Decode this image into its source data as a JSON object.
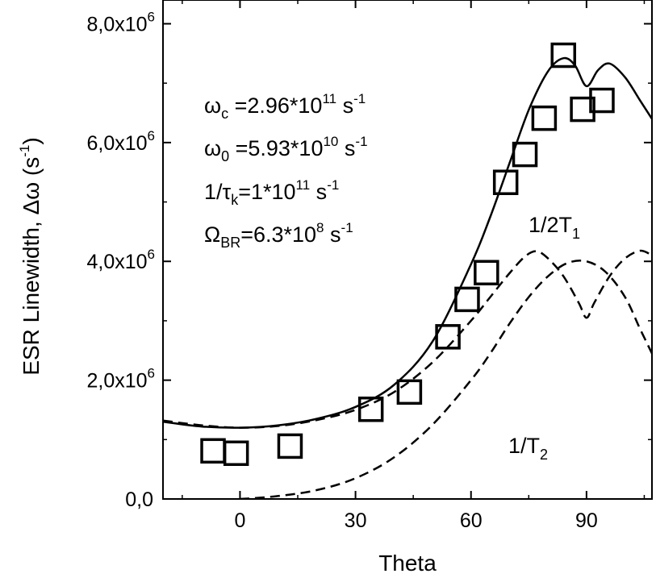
{
  "chart_data": {
    "type": "line",
    "xlabel": "Theta",
    "ylabel": {
      "prefix": "ESR Linewidth, Δω  (s",
      "sup": "-1",
      "suffix": ")"
    },
    "xlim": [
      -20,
      107
    ],
    "ylim": [
      -0.0,
      8.4
    ],
    "y_scale_note": "values in units of 10^6",
    "x_ticks": [
      {
        "value": 0,
        "label": "0"
      },
      {
        "value": 30,
        "label": "30"
      },
      {
        "value": 60,
        "label": "60"
      },
      {
        "value": 90,
        "label": "90"
      }
    ],
    "y_ticks": [
      {
        "value": 0,
        "label": "0,0",
        "exp": ""
      },
      {
        "value": 2,
        "label": "2,0x10",
        "exp": "6"
      },
      {
        "value": 4,
        "label": "4,0x10",
        "exp": "6"
      },
      {
        "value": 6,
        "label": "6,0x10",
        "exp": "6"
      },
      {
        "value": 8,
        "label": "8,0x10",
        "exp": "6"
      }
    ],
    "series": [
      {
        "style": "squares",
        "x": [
          -7,
          -1,
          13,
          34,
          44,
          54,
          59,
          64,
          69,
          74,
          79,
          84,
          89,
          94
        ],
        "y": [
          0.81,
          0.77,
          0.89,
          1.51,
          1.8,
          2.73,
          3.36,
          3.81,
          5.33,
          5.8,
          6.41,
          7.47,
          6.56,
          6.71
        ]
      },
      {
        "style": "solid",
        "x": [
          -20,
          -10,
          0,
          10,
          20,
          30,
          40,
          50,
          60,
          65,
          70,
          75,
          80,
          84,
          87,
          90,
          93,
          96,
          100,
          104,
          107
        ],
        "y": [
          1.3,
          1.22,
          1.2,
          1.24,
          1.35,
          1.55,
          1.92,
          2.65,
          3.95,
          4.75,
          5.65,
          6.55,
          7.2,
          7.42,
          7.3,
          6.95,
          7.22,
          7.33,
          7.1,
          6.7,
          6.4
        ]
      },
      {
        "style": "dashed",
        "name": "1/2T1",
        "x": [
          -20,
          -10,
          0,
          10,
          20,
          30,
          40,
          50,
          60,
          65,
          70,
          74,
          77,
          80,
          84,
          88,
          90,
          92,
          96,
          100,
          104,
          107
        ],
        "y": [
          1.32,
          1.24,
          1.2,
          1.23,
          1.33,
          1.5,
          1.8,
          2.3,
          3.0,
          3.4,
          3.8,
          4.08,
          4.17,
          4.05,
          3.75,
          3.3,
          3.05,
          3.3,
          3.75,
          4.05,
          4.18,
          4.1
        ]
      },
      {
        "style": "dashed",
        "name": "1/T2",
        "x": [
          -20,
          -10,
          0,
          10,
          20,
          30,
          40,
          50,
          60,
          65,
          70,
          75,
          80,
          85,
          90,
          95,
          100,
          104,
          107
        ],
        "y": [
          -0.02,
          -0.02,
          0.0,
          0.05,
          0.15,
          0.35,
          0.7,
          1.25,
          2.0,
          2.45,
          2.95,
          3.4,
          3.75,
          3.97,
          4.0,
          3.82,
          3.4,
          2.85,
          2.45
        ]
      }
    ],
    "annotations": {
      "line1": {
        "sym": "ω",
        "sub": "c",
        "text": " =2.96*10",
        "sup": "11",
        "tail": " s",
        "sup2": "-1"
      },
      "line2": {
        "sym": "ω",
        "sub": "0",
        "text": " =5.93*10",
        "sup": "10",
        "tail": " s",
        "sup2": "-1"
      },
      "line3": {
        "sym": "1/τ",
        "sub": "k",
        "text": "=1*10",
        "sup": "11",
        "tail": " s",
        "sup2": "-1"
      },
      "line4": {
        "sym": "Ω",
        "sub": "BR",
        "text": "=6.3*10",
        "sup": "8",
        "tail": " s",
        "sup2": "-1"
      },
      "label_t1": {
        "text": "1/2T",
        "sub": "1"
      },
      "label_t2": {
        "text": "1/T",
        "sub": "2"
      }
    },
    "grid": false,
    "legend": "none"
  }
}
